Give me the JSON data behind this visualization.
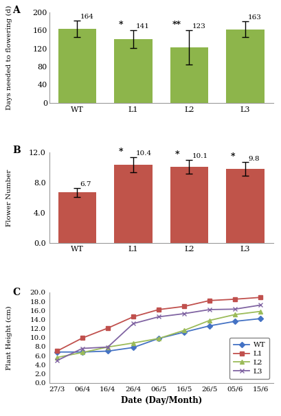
{
  "panel_A": {
    "categories": [
      "WT",
      "L1",
      "L2",
      "L3"
    ],
    "values": [
      164,
      141,
      123,
      163
    ],
    "errors": [
      18,
      20,
      38,
      18
    ],
    "bar_color": "#8db54b",
    "ylabel": "Days needed to flowering (d)",
    "ylim": [
      0,
      200
    ],
    "yticks": [
      0,
      40,
      80,
      120,
      160,
      200
    ],
    "significance": [
      "",
      "*",
      "**",
      ""
    ],
    "label": "A"
  },
  "panel_B": {
    "categories": [
      "WT",
      "L1",
      "L2",
      "L3"
    ],
    "values": [
      6.7,
      10.4,
      10.1,
      9.8
    ],
    "errors": [
      0.6,
      1.0,
      0.9,
      0.9
    ],
    "bar_color": "#c0544a",
    "ylabel": "Flower Number",
    "ylim": [
      0,
      12.0
    ],
    "yticks": [
      0.0,
      4.0,
      8.0,
      12.0
    ],
    "significance": [
      "",
      "*",
      "*",
      "*"
    ],
    "label": "B"
  },
  "panel_C": {
    "dates": [
      "27/3",
      "06/4",
      "16/4",
      "26/4",
      "06/5",
      "16/5",
      "26/5",
      "05/6",
      "15/6"
    ],
    "WT": [
      6.8,
      6.8,
      7.0,
      7.8,
      9.8,
      11.2,
      12.6,
      13.6,
      14.2
    ],
    "L1": [
      7.0,
      9.9,
      12.1,
      14.6,
      16.2,
      16.9,
      18.2,
      18.5,
      18.9
    ],
    "L2": [
      5.6,
      6.7,
      7.9,
      8.8,
      9.8,
      11.6,
      13.8,
      15.1,
      15.8
    ],
    "L3": [
      4.9,
      7.6,
      7.9,
      13.1,
      14.6,
      15.3,
      16.2,
      16.3,
      17.2
    ],
    "colors": {
      "WT": "#4472c4",
      "L1": "#c0504d",
      "L2": "#9bbb59",
      "L3": "#8064a2"
    },
    "markers": {
      "WT": "D",
      "L1": "s",
      "L2": "^",
      "L3": "x"
    },
    "ylabel": "Plant Height (cm)",
    "xlabel": "Date (Day/Month)",
    "ylim": [
      0,
      20.0
    ],
    "yticks": [
      0.0,
      2.0,
      4.0,
      6.0,
      8.0,
      10.0,
      12.0,
      14.0,
      16.0,
      18.0,
      20.0
    ],
    "label": "C"
  },
  "background_color": "#ffffff",
  "font_family": "DejaVu Serif"
}
